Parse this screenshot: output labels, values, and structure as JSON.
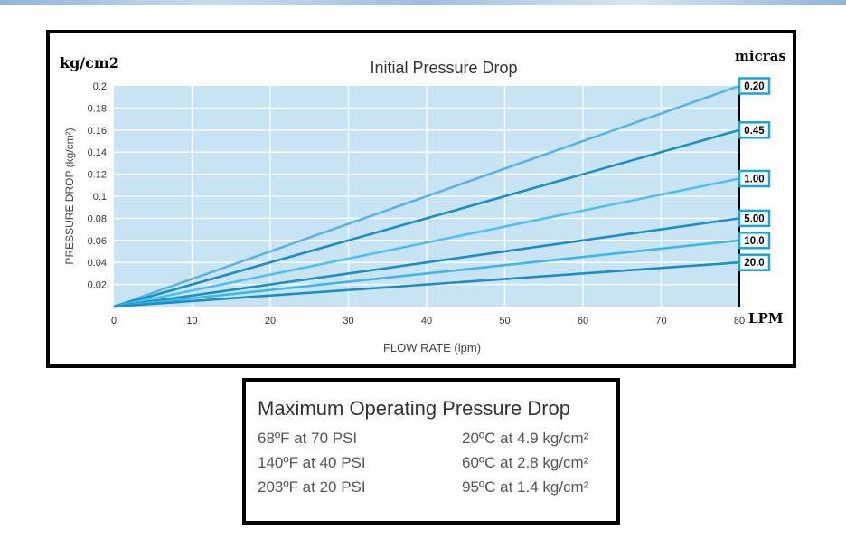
{
  "chart_data": {
    "type": "line",
    "title": "Initial Pressure Drop",
    "xlabel": "FLOW RATE (lpm)",
    "ylabel": "PRESSURE DROP (kg/cm²)",
    "x_unit": "LPM",
    "y_unit": "kg/cm2",
    "legend_title": "micras",
    "xlim": [
      0,
      80
    ],
    "ylim": [
      0,
      0.2
    ],
    "x_ticks": [
      "0",
      "10",
      "20",
      "30",
      "40",
      "50",
      "60",
      "70",
      "80"
    ],
    "y_ticks": [
      "0.02",
      "0.04",
      "0.06",
      "0.08",
      "0.1",
      "0.12",
      "0.14",
      "0.16",
      "0.18",
      "0.2"
    ],
    "grid": true,
    "legend_position": "right",
    "series": [
      {
        "name": "0.20",
        "x": [
          0,
          80
        ],
        "y": [
          0,
          0.2
        ],
        "color": "#5ab4de"
      },
      {
        "name": "0.45",
        "x": [
          0,
          80
        ],
        "y": [
          0,
          0.16
        ],
        "color": "#1b8fc2"
      },
      {
        "name": "1.00",
        "x": [
          0,
          80
        ],
        "y": [
          0,
          0.116
        ],
        "color": "#4fc1ea"
      },
      {
        "name": "5.00",
        "x": [
          0,
          80
        ],
        "y": [
          0,
          0.08
        ],
        "color": "#1b8fc2"
      },
      {
        "name": "10.0",
        "x": [
          0,
          80
        ],
        "y": [
          0,
          0.06
        ],
        "color": "#3db8e6"
      },
      {
        "name": "20.0",
        "x": [
          0,
          80
        ],
        "y": [
          0,
          0.04
        ],
        "color": "#1b8fc2"
      }
    ],
    "colors": {
      "plot_bg": "#c7e3f4",
      "grid": "#ffffff",
      "label_border": "#1aa3d6"
    }
  },
  "table": {
    "title": "Maximum Operating Pressure Drop",
    "rows": [
      {
        "fahrenheit": "68ºF at 70 PSI",
        "celsius": "20ºC at 4.9 kg/cm²"
      },
      {
        "fahrenheit": "140ºF at 40 PSI",
        "celsius": "60ºC at 2.8 kg/cm²"
      },
      {
        "fahrenheit": "203ºF at 20 PSI",
        "celsius": "95ºC at 1.4 kg/cm²"
      }
    ]
  }
}
